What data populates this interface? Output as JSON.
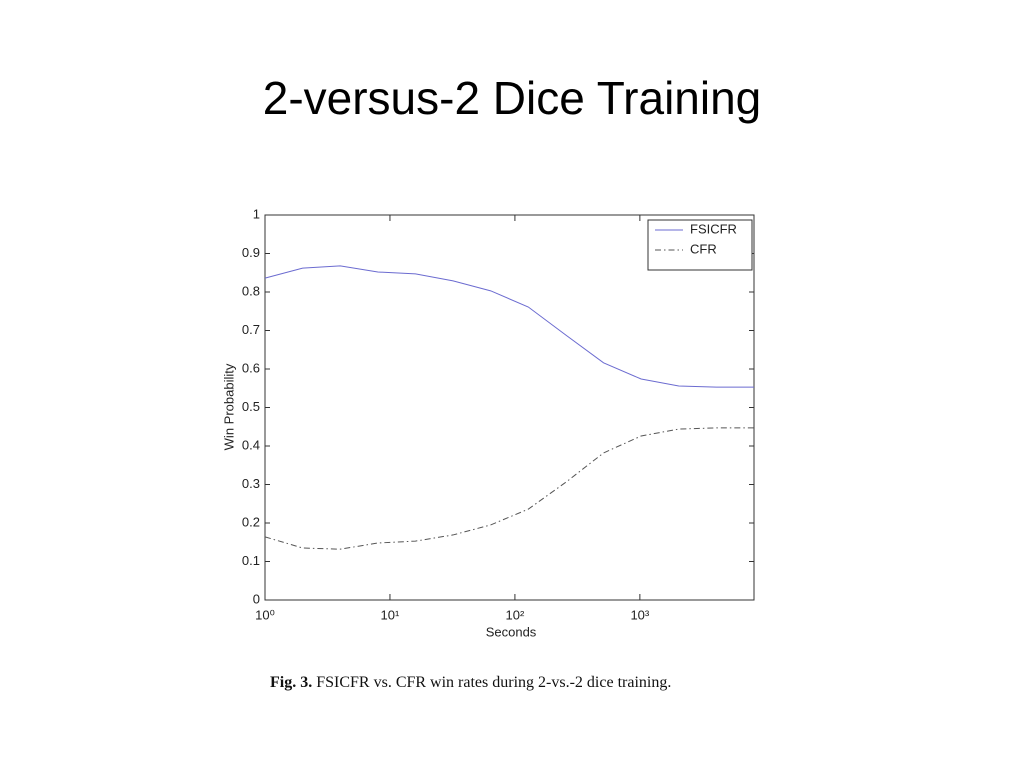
{
  "slide_title": "2-versus-2 Dice Training",
  "caption": {
    "label": "Fig. 3.",
    "text": "FSICFR vs. CFR win rates during 2-vs.-2 dice training."
  },
  "chart_data": {
    "type": "line",
    "xlabel": "Seconds",
    "ylabel": "Win Probability",
    "xscale": "log",
    "x": [
      1,
      2,
      4,
      8,
      16,
      32,
      64,
      128,
      256,
      512,
      1024,
      2048,
      4096,
      8192
    ],
    "series": [
      {
        "name": "FSICFR",
        "color": "#6b6bd0",
        "linestyle": "-",
        "values": [
          0.836,
          0.862,
          0.868,
          0.852,
          0.847,
          0.829,
          0.803,
          0.761,
          0.688,
          0.616,
          0.574,
          0.556,
          0.553,
          0.553
        ]
      },
      {
        "name": "CFR",
        "color": "#555555",
        "linestyle": "-.",
        "values": [
          0.164,
          0.135,
          0.132,
          0.148,
          0.153,
          0.169,
          0.195,
          0.236,
          0.306,
          0.382,
          0.426,
          0.444,
          0.447,
          0.447
        ]
      }
    ],
    "xlim": [
      1,
      8192
    ],
    "xticks": [
      {
        "value": 1,
        "label": "10⁰"
      },
      {
        "value": 10,
        "label": "10¹"
      },
      {
        "value": 100,
        "label": "10²"
      },
      {
        "value": 1000,
        "label": "10³"
      }
    ],
    "ylim": [
      0,
      1
    ],
    "yticks": [
      0,
      0.1,
      0.2,
      0.3,
      0.4,
      0.5,
      0.6,
      0.7,
      0.8,
      0.9,
      1
    ],
    "legend": "upper right"
  }
}
